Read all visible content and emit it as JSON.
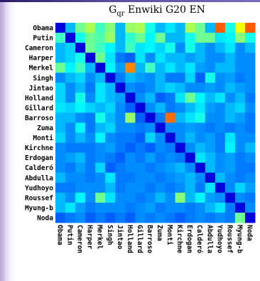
{
  "chart_data": {
    "type": "heatmap",
    "title_main": "G",
    "title_sub": "qr",
    "title_rest": " Enwiki G20 EN",
    "row_labels": [
      "Obama",
      "Putin",
      "Cameron",
      "Harper",
      "Merkel",
      "Singh",
      "Jintao",
      "Holland",
      "Gillard",
      "Barroso",
      "Zuma",
      "Monti",
      "Kirchne",
      "Erdogan",
      "Calderó",
      "Abdulla",
      "Yudhoyo",
      "Roussef",
      "Myung-b",
      "Noda"
    ],
    "col_labels": [
      "Obama",
      "Putin",
      "Cameron",
      "Harper",
      "Merkel",
      "Singh",
      "Jintao",
      "Holland",
      "Gillard",
      "Barroso",
      "Zuma",
      "Monti",
      "Kirchne",
      "Erdogan",
      "Calderó",
      "Abdulla",
      "Yudhoyo",
      "Roussef",
      "Myung-b",
      "Noda"
    ],
    "colormap": [
      "#00008f",
      "#0000ff",
      "#0080ff",
      "#00ffff",
      "#80ff80",
      "#ffff00",
      "#ff8000",
      "#ff0000"
    ],
    "value_range": [
      0,
      1
    ],
    "values": [
      [
        0.1,
        0.35,
        0.55,
        0.62,
        0.5,
        0.58,
        0.35,
        0.6,
        0.62,
        0.45,
        0.35,
        0.4,
        0.35,
        0.62,
        0.55,
        0.35,
        0.9,
        0.45,
        0.7,
        0.9
      ],
      [
        0.5,
        0.1,
        0.45,
        0.55,
        0.52,
        0.6,
        0.35,
        0.48,
        0.55,
        0.42,
        0.55,
        0.35,
        0.35,
        0.45,
        0.55,
        0.55,
        0.4,
        0.42,
        0.58,
        0.45
      ],
      [
        0.35,
        0.38,
        0.1,
        0.55,
        0.5,
        0.42,
        0.35,
        0.5,
        0.4,
        0.42,
        0.38,
        0.45,
        0.3,
        0.45,
        0.35,
        0.3,
        0.35,
        0.4,
        0.3,
        0.35
      ],
      [
        0.35,
        0.38,
        0.45,
        0.1,
        0.55,
        0.4,
        0.28,
        0.25,
        0.4,
        0.3,
        0.4,
        0.35,
        0.35,
        0.32,
        0.35,
        0.3,
        0.3,
        0.35,
        0.3,
        0.3
      ],
      [
        0.55,
        0.42,
        0.5,
        0.35,
        0.1,
        0.42,
        0.32,
        0.85,
        0.35,
        0.5,
        0.35,
        0.4,
        0.35,
        0.4,
        0.32,
        0.3,
        0.35,
        0.35,
        0.3,
        0.3
      ],
      [
        0.3,
        0.35,
        0.38,
        0.3,
        0.35,
        0.1,
        0.28,
        0.35,
        0.32,
        0.3,
        0.35,
        0.28,
        0.28,
        0.38,
        0.25,
        0.45,
        0.3,
        0.32,
        0.28,
        0.3
      ],
      [
        0.38,
        0.3,
        0.35,
        0.28,
        0.4,
        0.35,
        0.1,
        0.3,
        0.28,
        0.3,
        0.35,
        0.38,
        0.35,
        0.3,
        0.3,
        0.32,
        0.3,
        0.35,
        0.32,
        0.3
      ],
      [
        0.38,
        0.3,
        0.45,
        0.3,
        0.4,
        0.35,
        0.32,
        0.1,
        0.3,
        0.35,
        0.25,
        0.28,
        0.4,
        0.55,
        0.42,
        0.35,
        0.4,
        0.3,
        0.35,
        0.28
      ],
      [
        0.4,
        0.38,
        0.42,
        0.38,
        0.35,
        0.38,
        0.3,
        0.25,
        0.1,
        0.3,
        0.35,
        0.28,
        0.3,
        0.35,
        0.4,
        0.32,
        0.3,
        0.35,
        0.38,
        0.3
      ],
      [
        0.35,
        0.35,
        0.3,
        0.28,
        0.45,
        0.35,
        0.3,
        0.6,
        0.25,
        0.1,
        0.28,
        0.88,
        0.35,
        0.4,
        0.45,
        0.3,
        0.3,
        0.35,
        0.32,
        0.28
      ],
      [
        0.35,
        0.3,
        0.42,
        0.28,
        0.35,
        0.38,
        0.3,
        0.3,
        0.28,
        0.3,
        0.1,
        0.3,
        0.3,
        0.32,
        0.3,
        0.28,
        0.3,
        0.28,
        0.3,
        0.28
      ],
      [
        0.38,
        0.3,
        0.35,
        0.3,
        0.42,
        0.3,
        0.28,
        0.28,
        0.25,
        0.38,
        0.3,
        0.1,
        0.3,
        0.35,
        0.3,
        0.32,
        0.28,
        0.4,
        0.3,
        0.3
      ],
      [
        0.3,
        0.28,
        0.28,
        0.28,
        0.3,
        0.32,
        0.28,
        0.25,
        0.28,
        0.25,
        0.3,
        0.28,
        0.1,
        0.3,
        0.35,
        0.32,
        0.28,
        0.42,
        0.3,
        0.35
      ],
      [
        0.3,
        0.32,
        0.35,
        0.28,
        0.3,
        0.28,
        0.25,
        0.3,
        0.28,
        0.32,
        0.28,
        0.3,
        0.28,
        0.1,
        0.4,
        0.35,
        0.3,
        0.32,
        0.28,
        0.3
      ],
      [
        0.3,
        0.28,
        0.32,
        0.28,
        0.38,
        0.25,
        0.28,
        0.3,
        0.3,
        0.28,
        0.3,
        0.32,
        0.35,
        0.3,
        0.1,
        0.35,
        0.3,
        0.32,
        0.28,
        0.28
      ],
      [
        0.35,
        0.3,
        0.3,
        0.28,
        0.3,
        0.4,
        0.28,
        0.28,
        0.3,
        0.3,
        0.28,
        0.3,
        0.32,
        0.35,
        0.3,
        0.1,
        0.35,
        0.3,
        0.28,
        0.3
      ],
      [
        0.28,
        0.28,
        0.3,
        0.3,
        0.3,
        0.35,
        0.28,
        0.3,
        0.3,
        0.28,
        0.3,
        0.28,
        0.3,
        0.35,
        0.28,
        0.4,
        0.1,
        0.3,
        0.38,
        0.32
      ],
      [
        0.35,
        0.3,
        0.42,
        0.3,
        0.55,
        0.4,
        0.3,
        0.3,
        0.28,
        0.3,
        0.35,
        0.3,
        0.58,
        0.35,
        0.42,
        0.32,
        0.3,
        0.1,
        0.3,
        0.28
      ],
      [
        0.35,
        0.4,
        0.32,
        0.28,
        0.3,
        0.3,
        0.3,
        0.28,
        0.3,
        0.32,
        0.28,
        0.3,
        0.3,
        0.28,
        0.3,
        0.35,
        0.4,
        0.28,
        0.1,
        0.3
      ],
      [
        0.25,
        0.28,
        0.3,
        0.25,
        0.28,
        0.25,
        0.28,
        0.25,
        0.3,
        0.28,
        0.3,
        0.28,
        0.25,
        0.28,
        0.3,
        0.28,
        0.3,
        0.28,
        0.55,
        0.1
      ]
    ]
  }
}
